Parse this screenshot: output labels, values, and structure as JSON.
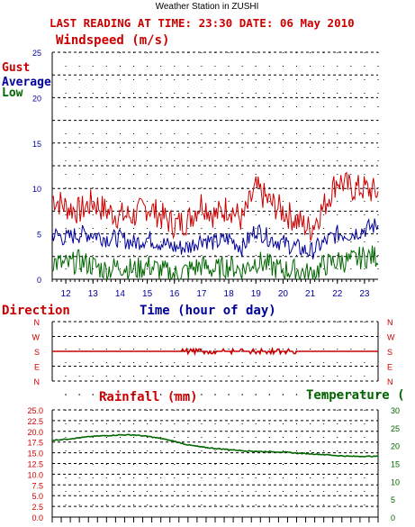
{
  "header": {
    "station": "Weather Station in ZUSHI",
    "reading": "LAST READING AT TIME: 23:30  DATE: 06 May 2010"
  },
  "colors": {
    "gust": "#cc0000",
    "average": "#000099",
    "low": "#006600",
    "direction": "#cc0000",
    "rainfall": "#cc0000",
    "temperature": "#006600",
    "grid": "#000000"
  },
  "chart_data": [
    {
      "type": "line",
      "title": "Windspeed (m/s)",
      "xlabel": "Time (hour of day)",
      "ylim": [
        0,
        25
      ],
      "y_ticks": [
        "0",
        "5",
        "10",
        "15",
        "20",
        "25"
      ],
      "x_ticks": [
        "12",
        "13",
        "14",
        "15",
        "16",
        "17",
        "18",
        "19",
        "20",
        "21",
        "22",
        "23"
      ],
      "xlim": [
        11.5,
        23.5
      ],
      "legend": [
        "Gust",
        "Average",
        "Low"
      ],
      "grid": true,
      "series": [
        {
          "name": "Gust",
          "x": [
            11.5,
            12.0,
            12.5,
            13.0,
            13.5,
            14.0,
            14.5,
            15.0,
            15.5,
            16.0,
            16.5,
            17.0,
            17.5,
            18.0,
            18.5,
            19.0,
            19.5,
            20.0,
            20.5,
            21.0,
            21.5,
            22.0,
            22.5,
            23.0,
            23.5
          ],
          "values": [
            9,
            8,
            7.5,
            8.5,
            7.5,
            7,
            7,
            8,
            7,
            6,
            6.5,
            8.5,
            7,
            8,
            6.5,
            10,
            8.5,
            7.5,
            6.5,
            5.5,
            8,
            11,
            10,
            10,
            9.5
          ]
        },
        {
          "name": "Average",
          "x": [
            11.5,
            12.0,
            12.5,
            13.0,
            13.5,
            14.0,
            14.5,
            15.0,
            15.5,
            16.0,
            16.5,
            17.0,
            17.5,
            18.0,
            18.5,
            19.0,
            19.5,
            20.0,
            20.5,
            21.0,
            21.5,
            22.0,
            22.5,
            23.0,
            23.5
          ],
          "values": [
            5,
            4.5,
            5,
            5,
            4.5,
            4.5,
            4,
            4.5,
            4,
            3.5,
            3.5,
            4.5,
            4,
            4.5,
            3.5,
            5.5,
            4.5,
            4,
            3.5,
            3,
            4,
            5,
            5,
            5.5,
            6
          ]
        },
        {
          "name": "Low",
          "x": [
            11.5,
            12.0,
            12.5,
            13.0,
            13.5,
            14.0,
            14.5,
            15.0,
            15.5,
            16.0,
            16.5,
            17.0,
            17.5,
            18.0,
            18.5,
            19.0,
            19.5,
            20.0,
            20.5,
            21.0,
            21.5,
            22.0,
            22.5,
            23.0,
            23.5
          ],
          "values": [
            2,
            1.5,
            2,
            1.5,
            1,
            1.5,
            1,
            1.5,
            1,
            0.5,
            1,
            1.5,
            1,
            1.5,
            1,
            2,
            1.5,
            1,
            1,
            0.5,
            1.5,
            2,
            2,
            2.5,
            2.5
          ]
        }
      ]
    },
    {
      "type": "line",
      "title": "Direction",
      "y_ticks": [
        "N",
        "W",
        "S",
        "E",
        "N"
      ],
      "xlim": [
        11.5,
        23.5
      ],
      "grid": true,
      "series": [
        {
          "name": "Direction",
          "x": [
            11.5,
            23.5
          ],
          "values": [
            "S",
            "S"
          ]
        }
      ]
    },
    {
      "type": "line",
      "title": "Rainfall (mm)",
      "y2label": "Temperature (",
      "ylim": [
        0,
        25
      ],
      "y_ticks": [
        "0.0",
        "2.5",
        "5.0",
        "7.5",
        "10.0",
        "12.5",
        "15.0",
        "17.5",
        "20.0",
        "22.5",
        "25.0"
      ],
      "y2lim": [
        0,
        30
      ],
      "y2_ticks": [
        "0",
        "5",
        "10",
        "15",
        "20",
        "25",
        "30"
      ],
      "xlim": [
        11.5,
        23.5
      ],
      "grid": true,
      "series": [
        {
          "name": "Temperature",
          "axis": "y2",
          "x": [
            11.5,
            12.0,
            12.5,
            13.0,
            13.5,
            14.0,
            14.5,
            15.0,
            15.5,
            16.0,
            16.5,
            17.0,
            17.5,
            18.0,
            18.5,
            19.0,
            19.5,
            20.0,
            20.5,
            21.0,
            21.5,
            22.0,
            22.5,
            23.0,
            23.5
          ],
          "values": [
            21.5,
            21.8,
            22.2,
            22.6,
            22.8,
            23.0,
            23.0,
            22.6,
            22.0,
            21.2,
            20.2,
            19.6,
            19.2,
            18.9,
            18.6,
            18.4,
            18.3,
            18.2,
            17.9,
            17.7,
            17.5,
            17.2,
            17.0,
            17.0,
            17.0
          ]
        }
      ]
    }
  ]
}
